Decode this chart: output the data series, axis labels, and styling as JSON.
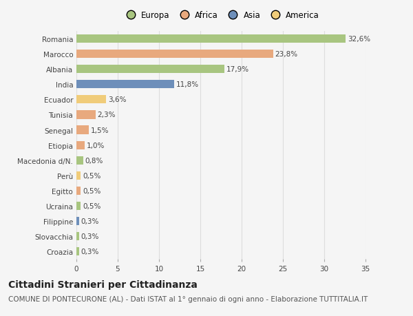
{
  "categories": [
    "Romania",
    "Marocco",
    "Albania",
    "India",
    "Ecuador",
    "Tunisia",
    "Senegal",
    "Etiopia",
    "Macedonia d/N.",
    "Perù",
    "Egitto",
    "Ucraina",
    "Filippine",
    "Slovacchia",
    "Croazia"
  ],
  "values": [
    32.6,
    23.8,
    17.9,
    11.8,
    3.6,
    2.3,
    1.5,
    1.0,
    0.8,
    0.5,
    0.5,
    0.5,
    0.3,
    0.3,
    0.3
  ],
  "labels": [
    "32,6%",
    "23,8%",
    "17,9%",
    "11,8%",
    "3,6%",
    "2,3%",
    "1,5%",
    "1,0%",
    "0,8%",
    "0,5%",
    "0,5%",
    "0,5%",
    "0,3%",
    "0,3%",
    "0,3%"
  ],
  "colors": [
    "#a8c580",
    "#e8a97e",
    "#a8c580",
    "#6e8fba",
    "#f0cc7a",
    "#e8a97e",
    "#e8a97e",
    "#e8a97e",
    "#a8c580",
    "#f0cc7a",
    "#e8a97e",
    "#a8c580",
    "#6e8fba",
    "#a8c580",
    "#a8c580"
  ],
  "legend_labels": [
    "Europa",
    "Africa",
    "Asia",
    "America"
  ],
  "legend_colors": [
    "#a8c580",
    "#e8a97e",
    "#6e8fba",
    "#f0cc7a"
  ],
  "title": "Cittadini Stranieri per Cittadinanza",
  "subtitle": "COMUNE DI PONTECURONE (AL) - Dati ISTAT al 1° gennaio di ogni anno - Elaborazione TUTTITALIA.IT",
  "xlim": [
    0,
    35
  ],
  "xticks": [
    0,
    5,
    10,
    15,
    20,
    25,
    30,
    35
  ],
  "background_color": "#f5f5f5",
  "grid_color": "#dddddd",
  "bar_height": 0.55,
  "title_fontsize": 10,
  "subtitle_fontsize": 7.5,
  "tick_fontsize": 7.5,
  "label_fontsize": 7.5
}
